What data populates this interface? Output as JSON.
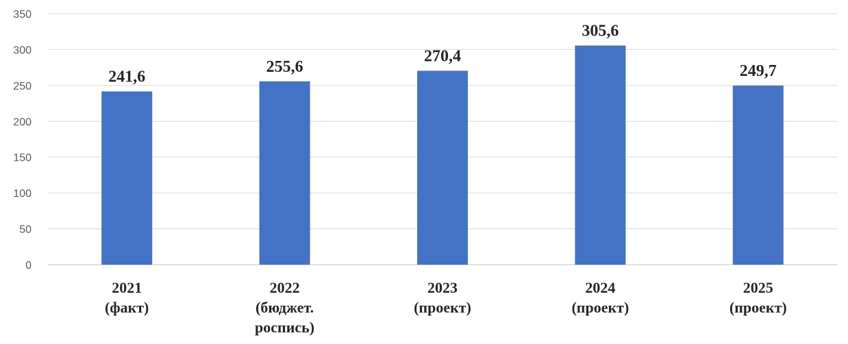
{
  "chart_data": {
    "type": "bar",
    "categories": [
      [
        "2021",
        "(факт)"
      ],
      [
        "2022",
        "(бюджет.",
        "роспись)"
      ],
      [
        "2023",
        "(проект)"
      ],
      [
        "2024",
        "(проект)"
      ],
      [
        "2025",
        "(проект)"
      ]
    ],
    "values": [
      241.6,
      255.6,
      270.4,
      305.6,
      249.7
    ],
    "data_labels": [
      "241,6",
      "255,6",
      "270,4",
      "305,6",
      "249,7"
    ],
    "yticks": [
      "0",
      "50",
      "100",
      "150",
      "200",
      "250",
      "300",
      "350"
    ],
    "ylim": [
      0,
      350
    ],
    "grid": true,
    "legend": "none",
    "bar_color": "#4472c4"
  }
}
